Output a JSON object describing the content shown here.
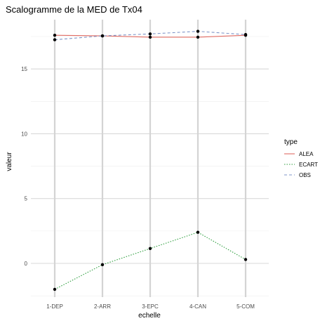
{
  "chart_data": {
    "type": "line",
    "title": "Scalogramme de la MED de Tx04",
    "xlabel": "echelle",
    "ylabel": "valeur",
    "categories": [
      "1-DEP",
      "2-ARR",
      "3-EPC",
      "4-CAN",
      "5-COM"
    ],
    "ylim": [
      -2.6,
      18.8
    ],
    "yticks": [
      0,
      5,
      10,
      15
    ],
    "grid": true,
    "legend": {
      "title": "type",
      "placement": "right"
    },
    "series": [
      {
        "name": "ALEA",
        "color": "#e06c64",
        "dash": "solid",
        "values": [
          17.6,
          17.55,
          17.45,
          17.45,
          17.6
        ]
      },
      {
        "name": "ECART",
        "color": "#2e9e3e",
        "dash": "dotted",
        "values": [
          -2.0,
          -0.1,
          1.15,
          2.4,
          0.3
        ]
      },
      {
        "name": "OBS",
        "color": "#7f95c8",
        "dash": "dashed",
        "values": [
          17.25,
          17.55,
          17.7,
          17.9,
          17.65
        ]
      }
    ]
  }
}
